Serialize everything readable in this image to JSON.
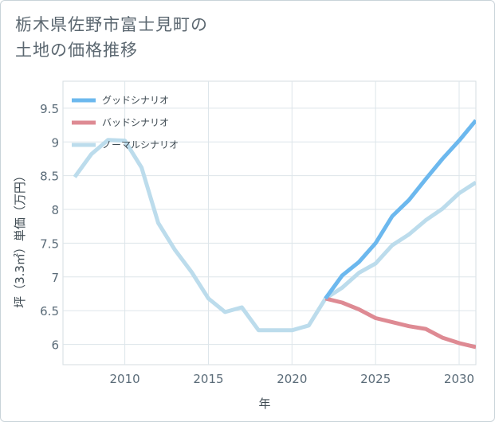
{
  "title": {
    "line1": "栃木県佐野市富士見町の",
    "line2": "土地の価格推移"
  },
  "chart_data": {
    "type": "line",
    "xlabel": "年",
    "ylabel": "坪（3.3㎡）単価（万円）",
    "xlim": [
      2006.3,
      2031
    ],
    "ylim": [
      5.7,
      9.9
    ],
    "x_ticks": [
      2010,
      2015,
      2020,
      2025,
      2030
    ],
    "y_ticks": [
      6,
      6.5,
      7,
      7.5,
      8,
      8.5,
      9,
      9.5
    ],
    "x_tick_labels": [
      "2010",
      "2015",
      "2020",
      "2025",
      "2030"
    ],
    "y_tick_labels": [
      "6",
      "6.5",
      "7",
      "7.5",
      "8",
      "8.5",
      "9",
      "9.5"
    ],
    "grid": true,
    "legend_position": "top-left",
    "series": [
      {
        "name": "グッドシナリオ",
        "color": "#6cb8ee",
        "x": [
          2022,
          2023,
          2024,
          2025,
          2026,
          2027,
          2028,
          2029,
          2030,
          2031
        ],
        "y": [
          6.68,
          7.02,
          7.22,
          7.5,
          7.9,
          8.14,
          8.45,
          8.75,
          9.02,
          9.32
        ]
      },
      {
        "name": "バッドシナリオ",
        "color": "#de8a93",
        "x": [
          2022,
          2023,
          2024,
          2025,
          2026,
          2027,
          2028,
          2029,
          2030,
          2031
        ],
        "y": [
          6.68,
          6.62,
          6.52,
          6.39,
          6.33,
          6.27,
          6.23,
          6.1,
          6.02,
          5.96
        ]
      },
      {
        "name": "ノーマルシナリオ",
        "color": "#bcdcec",
        "x": [
          2007,
          2008,
          2009,
          2010,
          2011,
          2012,
          2013,
          2014,
          2015,
          2016,
          2017,
          2018,
          2019,
          2020,
          2021,
          2022,
          2023,
          2024,
          2025,
          2026,
          2027,
          2028,
          2029,
          2030,
          2031
        ],
        "y": [
          8.48,
          8.82,
          9.03,
          9.02,
          8.62,
          7.8,
          7.4,
          7.07,
          6.68,
          6.48,
          6.55,
          6.21,
          6.21,
          6.21,
          6.28,
          6.68,
          6.84,
          7.06,
          7.2,
          7.47,
          7.63,
          7.84,
          8.01,
          8.24,
          8.4
        ]
      }
    ]
  }
}
